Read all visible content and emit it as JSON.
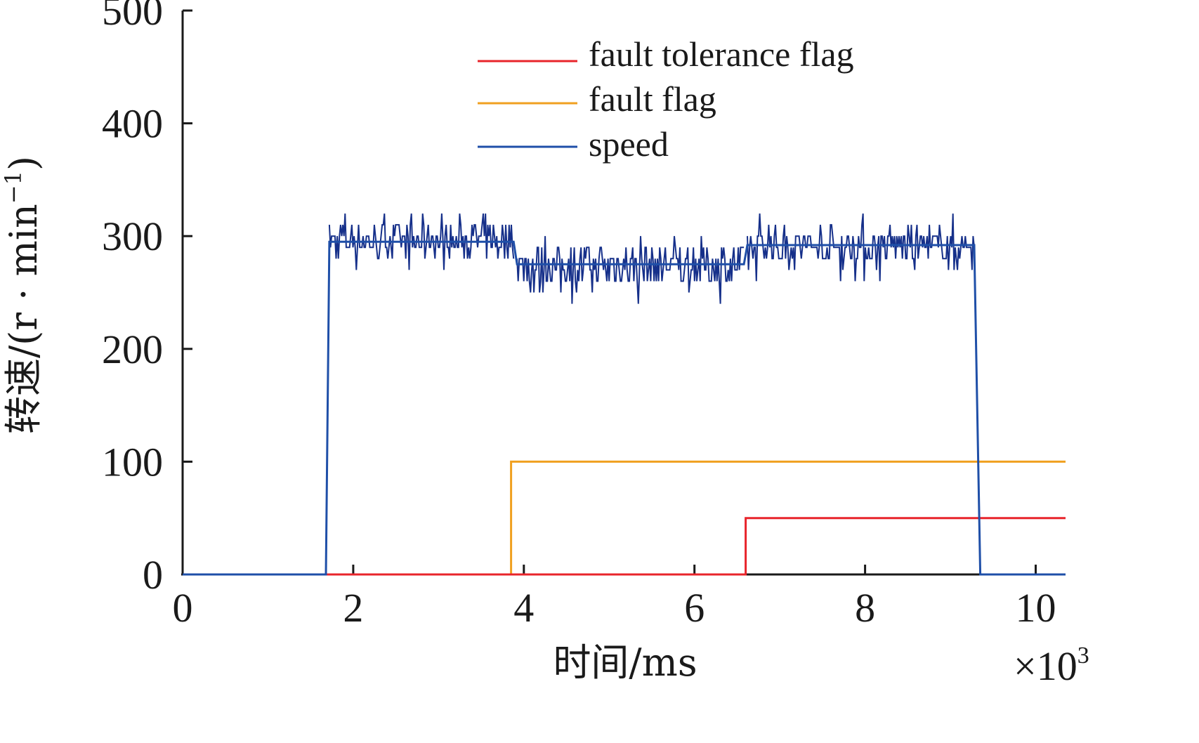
{
  "chart_data": {
    "type": "line",
    "xlabel": "时间/ms",
    "x_multiplier": "×10",
    "x_multiplier_exp": "3",
    "ylabel": "转速/(r · min",
    "ylabel_exp": "−1",
    "ylabel_end": ")",
    "xlim": [
      0,
      10.35
    ],
    "ylim": [
      0,
      500
    ],
    "xticks": [
      0,
      2,
      4,
      6,
      8,
      10
    ],
    "yticks": [
      0,
      100,
      200,
      300,
      400,
      500
    ],
    "xtick_labels": [
      "0",
      "2",
      "4",
      "6",
      "8",
      "10"
    ],
    "ytick_labels": [
      "0",
      "100",
      "200",
      "300",
      "400",
      "500"
    ],
    "legend_position": "top-center",
    "series": [
      {
        "name": "fault tolerance flag",
        "color": "#e8242b",
        "x": [
          0,
          6.6,
          6.6,
          10.35
        ],
        "y": [
          0,
          0,
          50,
          50
        ]
      },
      {
        "name": "fault flag",
        "color": "#f0a020",
        "x": [
          0,
          3.85,
          3.85,
          10.35
        ],
        "y": [
          0,
          0,
          100,
          100
        ]
      },
      {
        "name": "speed",
        "color": "#1f4fa8",
        "noisy_color": "#16308a",
        "x": [
          0,
          1.68,
          1.72,
          3.88,
          3.92,
          6.58,
          6.62,
          9.28,
          9.35,
          10.35
        ],
        "y": [
          0,
          0,
          295,
          295,
          275,
          275,
          292,
          292,
          0,
          0
        ],
        "noise": [
          {
            "x_start": 1.72,
            "x_end": 3.88,
            "min": 272,
            "max": 320
          },
          {
            "x_start": 3.92,
            "x_end": 6.58,
            "min": 242,
            "max": 305
          },
          {
            "x_start": 6.62,
            "x_end": 9.28,
            "min": 262,
            "max": 320
          }
        ]
      }
    ]
  }
}
